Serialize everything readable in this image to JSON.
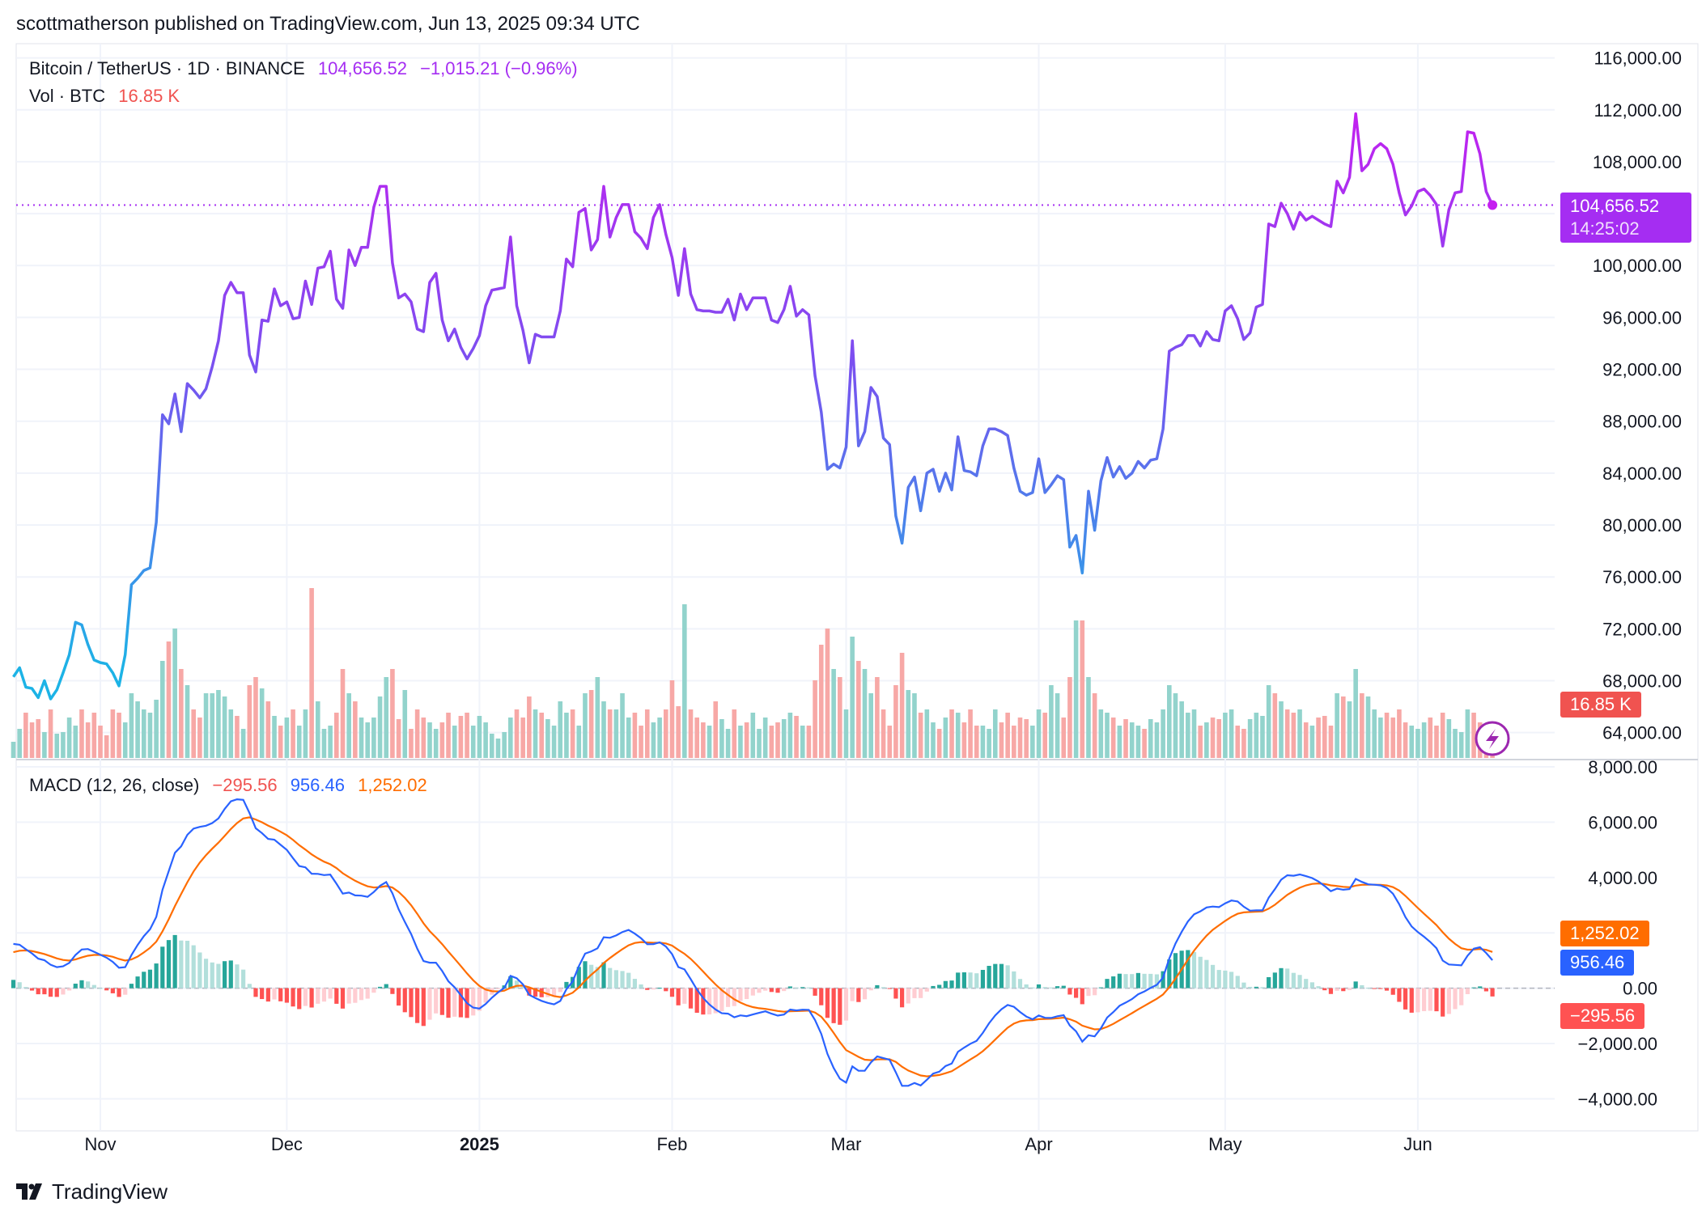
{
  "header": {
    "publisher_line": "scottmatherson published on TradingView.com, Jun 13, 2025 09:34 UTC"
  },
  "legend": {
    "symbol": "Bitcoin / TetherUS · 1D · BINANCE",
    "last_price": "104,656.52",
    "change": "−1,015.21 (−0.96%)",
    "volume_label": "Vol · BTC",
    "volume_value": "16.85 K",
    "macd_label": "MACD (12, 26, close)",
    "macd_hist": "−295.56",
    "macd_line": "956.46",
    "macd_signal": "1,252.02"
  },
  "badges": {
    "price": "104,656.52",
    "countdown": "14:25:02",
    "volume": "16.85 K",
    "signal": "1,252.02",
    "macd": "956.46",
    "hist": "−295.56"
  },
  "branding": {
    "name": "TradingView"
  },
  "colors": {
    "price_high": "#c51ff0",
    "price_mid": "#7b4ff0",
    "price_low": "#1cb3e6",
    "vol_up": "#92d3cc",
    "vol_down": "#f7a8a6",
    "macd": "#2962ff",
    "signal": "#ff6d00",
    "hist_up_strong": "#26a69a",
    "hist_up_weak": "#b2dfdb",
    "hist_down_strong": "#ff5252",
    "hist_down_weak": "#ffcdd2",
    "badge_price": "#a52df2",
    "badge_volume": "#f05350"
  },
  "chart_data": {
    "type": "line",
    "title": "Bitcoin / TetherUS · 1D · BINANCE",
    "interval": "1D",
    "x_start": "2024-10-18",
    "x_end": "2025-06-13",
    "x_tick_labels": [
      "Nov",
      "Dec",
      "2025",
      "Feb",
      "Mar",
      "Apr",
      "May",
      "Jun"
    ],
    "x_tick_day_index": [
      14,
      44,
      75,
      106,
      134,
      165,
      195,
      226
    ],
    "price_axis": {
      "ylim": [
        64000,
        116000
      ],
      "ticks": [
        116000,
        112000,
        108000,
        104000,
        100000,
        96000,
        92000,
        88000,
        84000,
        80000,
        76000,
        72000,
        68000,
        64000
      ],
      "tick_labels": [
        "116,000.00",
        "112,000.00",
        "108,000.00",
        "",
        "100,000.00",
        "96,000.00",
        "92,000.00",
        "88,000.00",
        "84,000.00",
        "80,000.00",
        "76,000.00",
        "72,000.00",
        "68,000.00",
        "64,000.00"
      ]
    },
    "close_k": [
      68.3,
      69.0,
      67.5,
      67.4,
      66.7,
      68.0,
      66.6,
      67.3,
      68.6,
      70.0,
      72.5,
      72.3,
      70.8,
      69.6,
      69.4,
      69.3,
      68.6,
      67.6,
      70.0,
      75.4,
      75.9,
      76.5,
      76.7,
      80.2,
      88.5,
      87.8,
      90.1,
      87.2,
      90.9,
      90.4,
      89.8,
      90.5,
      92.2,
      94.2,
      97.7,
      98.7,
      97.9,
      97.9,
      93.1,
      91.8,
      95.8,
      95.7,
      98.2,
      96.9,
      97.2,
      95.9,
      96.0,
      98.8,
      97.0,
      99.8,
      99.9,
      101.1,
      97.4,
      96.7,
      101.2,
      100.0,
      101.4,
      101.4,
      104.5,
      106.1,
      106.1,
      100.2,
      97.5,
      97.8,
      97.2,
      95.1,
      94.9,
      98.7,
      99.4,
      95.8,
      94.2,
      95.1,
      93.7,
      92.8,
      93.6,
      94.6,
      96.9,
      98.1,
      98.2,
      98.3,
      102.2,
      96.9,
      95.0,
      92.5,
      94.7,
      94.5,
      94.5,
      94.5,
      96.5,
      100.5,
      99.9,
      104.1,
      104.4,
      101.2,
      102.0,
      106.1,
      102.2,
      103.7,
      104.7,
      104.7,
      102.6,
      102.1,
      101.3,
      103.7,
      104.7,
      102.4,
      100.6,
      97.7,
      101.3,
      97.8,
      96.6,
      96.5,
      96.5,
      96.4,
      96.4,
      97.4,
      95.8,
      97.8,
      96.6,
      97.5,
      97.5,
      97.5,
      95.8,
      95.6,
      96.6,
      98.4,
      96.1,
      96.6,
      96.2,
      91.5,
      88.7,
      84.3,
      84.7,
      84.4,
      86.0,
      94.2,
      86.1,
      87.2,
      90.6,
      89.9,
      86.7,
      86.2,
      80.7,
      78.6,
      82.9,
      83.7,
      81.1,
      84.0,
      84.3,
      82.6,
      84.0,
      82.7,
      86.8,
      84.2,
      84.1,
      83.8,
      86.1,
      87.4,
      87.4,
      87.2,
      86.9,
      84.4,
      82.6,
      82.3,
      82.5,
      85.1,
      82.5,
      83.1,
      83.8,
      83.5,
      78.3,
      79.2,
      76.3,
      82.6,
      79.6,
      83.4,
      85.2,
      83.7,
      84.5,
      83.6,
      84.0,
      84.9,
      84.4,
      85.0,
      85.1,
      87.4,
      93.4,
      93.7,
      93.9,
      94.6,
      94.6,
      93.8,
      94.9,
      94.3,
      94.2,
      96.5,
      96.9,
      95.9,
      94.3,
      94.8,
      96.8,
      97.0,
      103.2,
      103.0,
      104.8,
      104.0,
      102.8,
      104.1,
      103.5,
      103.8,
      103.5,
      103.2,
      103.0,
      106.5,
      105.6,
      106.8,
      111.7,
      107.3,
      107.8,
      109.0,
      109.4,
      109.0,
      107.8,
      105.6,
      103.9,
      104.6,
      105.7,
      105.9,
      105.4,
      104.7,
      101.5,
      104.3,
      105.6,
      105.7,
      110.3,
      110.2,
      108.6,
      105.7,
      104.66
    ],
    "volume_k": [
      10,
      18,
      28,
      22,
      24,
      16,
      30,
      15,
      16,
      25,
      20,
      30,
      22,
      28,
      20,
      14,
      30,
      28,
      22,
      40,
      35,
      30,
      28,
      36,
      60,
      72,
      80,
      55,
      45,
      30,
      25,
      40,
      40,
      42,
      38,
      30,
      26,
      18,
      45,
      50,
      43,
      35,
      26,
      20,
      25,
      30,
      20,
      30,
      105,
      35,
      18,
      20,
      28,
      55,
      40,
      35,
      25,
      22,
      25,
      38,
      50,
      55,
      24,
      42,
      18,
      30,
      25,
      22,
      18,
      22,
      28,
      20,
      26,
      28,
      20,
      26,
      22,
      15,
      12,
      16,
      25,
      30,
      25,
      38,
      30,
      28,
      24,
      20,
      35,
      28,
      30,
      20,
      40,
      42,
      50,
      35,
      30,
      30,
      40,
      25,
      28,
      20,
      30,
      22,
      25,
      30,
      48,
      32,
      95,
      30,
      25,
      22,
      20,
      35,
      24,
      18,
      30,
      20,
      22,
      28,
      18,
      25,
      20,
      22,
      24,
      28,
      26,
      20,
      20,
      48,
      70,
      80,
      55,
      50,
      30,
      75,
      60,
      55,
      40,
      50,
      30,
      20,
      45,
      65,
      42,
      40,
      28,
      30,
      22,
      18,
      25,
      30,
      28,
      22,
      30,
      20,
      20,
      18,
      30,
      22,
      28,
      20,
      25,
      24,
      20,
      30,
      28,
      45,
      40,
      25,
      50,
      85,
      85,
      50,
      40,
      30,
      28,
      25,
      20,
      24,
      22,
      20,
      18,
      24,
      22,
      30,
      45,
      40,
      35,
      28,
      30,
      20,
      22,
      25,
      24,
      28,
      30,
      20,
      18,
      24,
      28,
      26,
      45,
      40,
      35,
      30,
      28,
      30,
      22,
      20,
      25,
      26,
      20,
      40,
      38,
      35,
      55,
      40,
      38,
      30,
      25,
      28,
      25,
      30,
      22,
      20,
      18,
      22,
      25,
      20,
      28,
      24,
      18,
      16,
      30,
      28,
      22,
      20,
      16.85
    ],
    "macd": {
      "params": [
        12,
        26,
        9
      ],
      "initial_macd": 1600,
      "initial_signal": 1300,
      "last": {
        "macd": 956.46,
        "signal": 1252.02,
        "histogram": -295.56
      },
      "ylim": [
        -5000,
        8300
      ],
      "ticks": [
        8000,
        6000,
        4000,
        2000,
        0,
        -2000,
        -4000
      ],
      "tick_labels": [
        "8,000.00",
        "6,000.00",
        "4,000.00",
        "",
        "0.00",
        "−2,000.00",
        "−4,000.00"
      ]
    }
  }
}
